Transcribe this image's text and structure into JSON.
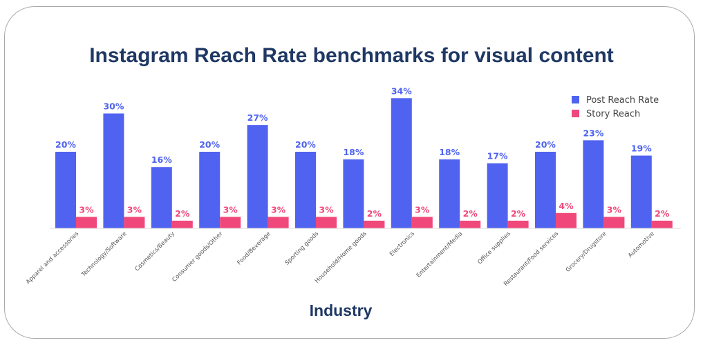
{
  "title": "Instagram Reach Rate benchmarks for visual content",
  "colors": {
    "title": "#1f3864",
    "post": "#4f63f0",
    "story": "#f0487b"
  },
  "chart_data": {
    "type": "bar",
    "title": "Instagram Reach Rate benchmarks for visual content",
    "xlabel": "Industry",
    "ylabel": "",
    "ylim": [
      0,
      35
    ],
    "legend_position": "top-right",
    "grid": false,
    "categories": [
      "Apparel and accessories",
      "Technology/Software",
      "Cosmetics/Beauty",
      "Consumer goods/Other",
      "Food/Beverage",
      "Sporting goods",
      "Household/Home goods",
      "Electronics",
      "Entertainment/Media",
      "Office supplies",
      "Restaurant/Food services",
      "Grocery/Drugstore",
      "Automotive"
    ],
    "series": [
      {
        "name": "Post Reach Rate",
        "color": "#4f63f0",
        "values": [
          20,
          30,
          16,
          20,
          27,
          20,
          18,
          34,
          18,
          17,
          20,
          23,
          19
        ],
        "labels": [
          "20%",
          "30%",
          "16%",
          "20%",
          "27%",
          "20%",
          "18%",
          "34%",
          "18%",
          "17%",
          "20%",
          "23%",
          "19%"
        ]
      },
      {
        "name": "Story Reach",
        "color": "#f0487b",
        "values": [
          3,
          3,
          2,
          3,
          3,
          3,
          2,
          3,
          2,
          2,
          4,
          3,
          2
        ],
        "labels": [
          "3%",
          "3%",
          "2%",
          "3%",
          "3%",
          "3%",
          "2%",
          "3%",
          "2%",
          "2%",
          "4%",
          "3%",
          "2%"
        ]
      }
    ]
  }
}
